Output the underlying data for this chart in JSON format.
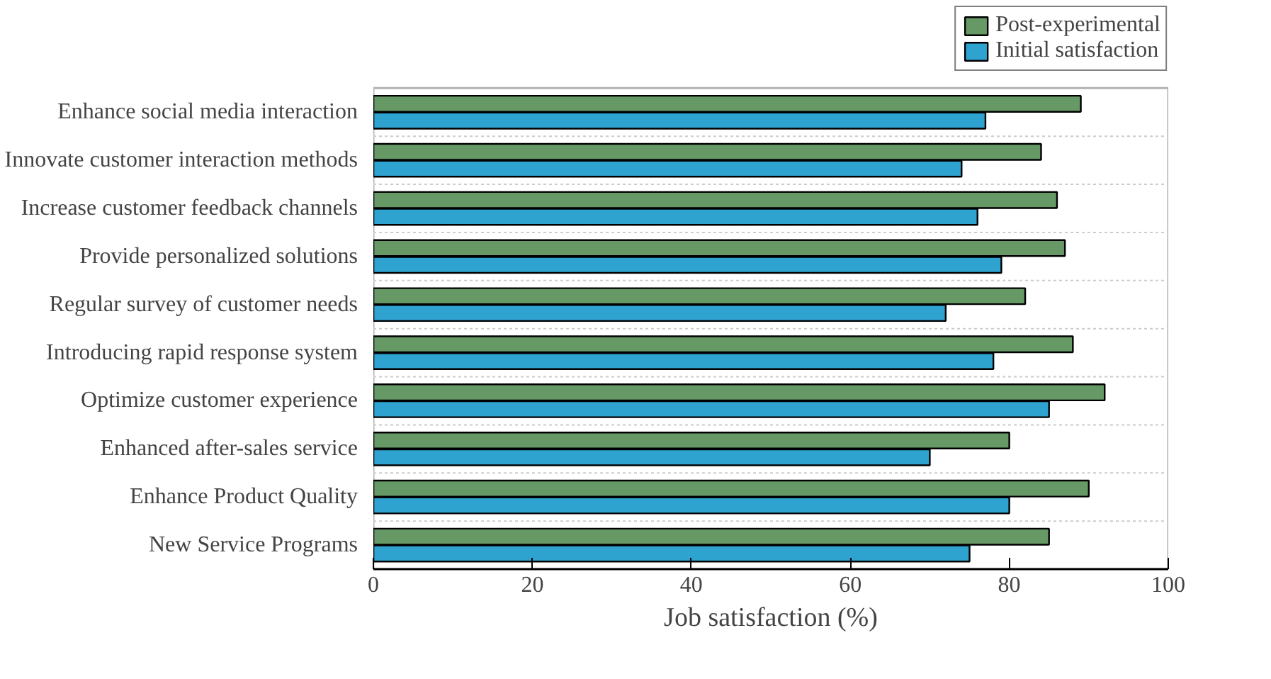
{
  "chart_data": {
    "type": "bar",
    "orientation": "horizontal",
    "xlabel": "Job satisfaction (%)",
    "categories": [
      "Enhance social media interaction",
      "Innovate customer interaction methods",
      "Increase customer feedback channels",
      "Provide personalized solutions",
      "Regular survey of customer needs",
      "Introducing rapid response system",
      "Optimize customer experience",
      "Enhanced after-sales service",
      "Enhance Product Quality",
      "New Service Programs"
    ],
    "series": [
      {
        "name": "Post-experimental",
        "color": "#669966",
        "values": [
          89,
          84,
          86,
          87,
          82,
          88,
          92,
          80,
          90,
          85
        ]
      },
      {
        "name": "Initial satisfaction",
        "color": "#2ea3d0",
        "values": [
          77,
          74,
          76,
          79,
          72,
          78,
          85,
          70,
          80,
          75
        ]
      }
    ],
    "xlim": [
      0,
      100
    ],
    "xticks": [
      0,
      20,
      40,
      60,
      80,
      100
    ],
    "grid": "y",
    "legend": "top right"
  }
}
